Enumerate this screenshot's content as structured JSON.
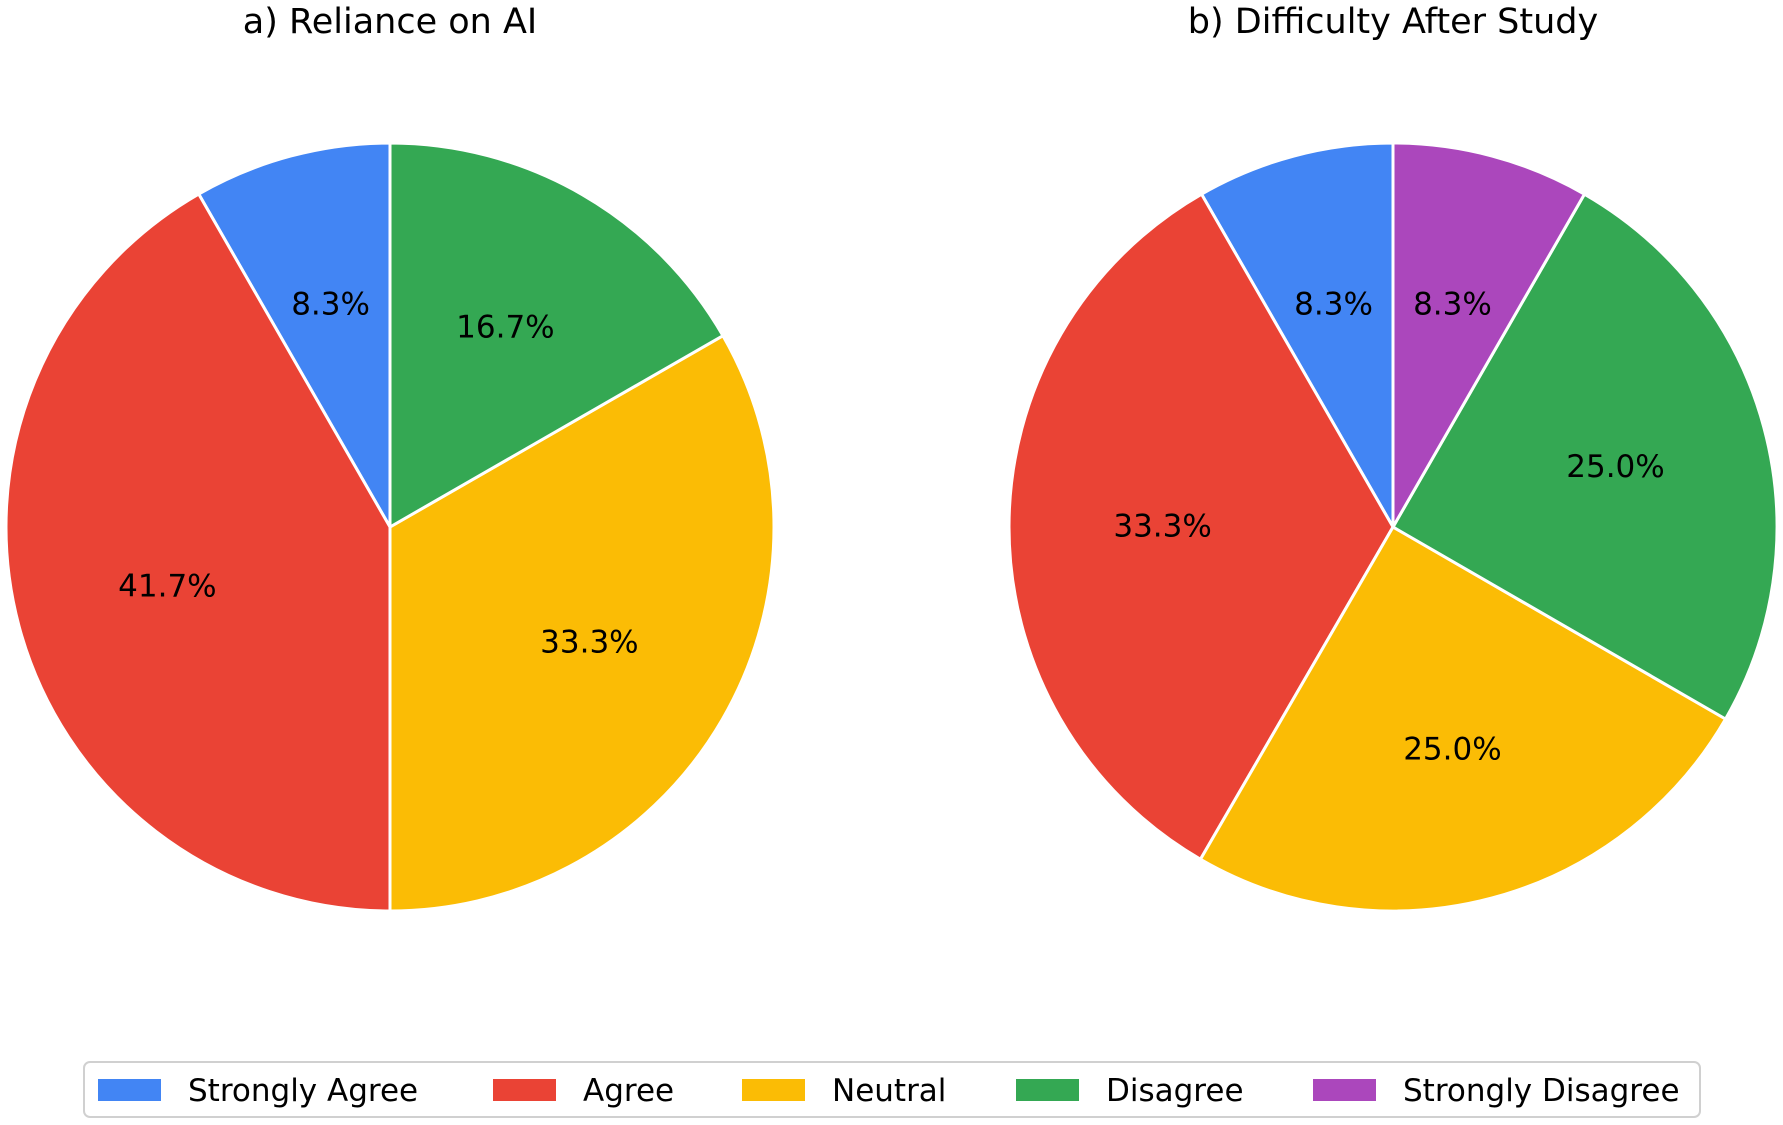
{
  "chart_data": [
    {
      "type": "pie",
      "title": "a) Reliance on AI",
      "start_angle_deg": 90,
      "direction": "counterclockwise",
      "categories": [
        "Strongly Agree",
        "Agree",
        "Neutral",
        "Disagree"
      ],
      "values": [
        8.3,
        41.7,
        33.3,
        16.7
      ],
      "labels": [
        "8.3%",
        "41.7%",
        "33.3%",
        "16.7%"
      ],
      "colors": [
        "#4285F4",
        "#EA4335",
        "#FBBC05",
        "#34A853"
      ]
    },
    {
      "type": "pie",
      "title": "b) Difficulty After Study",
      "start_angle_deg": 90,
      "direction": "counterclockwise",
      "categories": [
        "Strongly Agree",
        "Agree",
        "Neutral",
        "Disagree",
        "Strongly Disagree"
      ],
      "values": [
        8.3,
        33.3,
        25.0,
        25.0,
        8.3
      ],
      "labels": [
        "8.3%",
        "33.3%",
        "25.0%",
        "25.0%",
        "8.3%"
      ],
      "colors": [
        "#4285F4",
        "#EA4335",
        "#FBBC05",
        "#34A853",
        "#AB47BC"
      ]
    }
  ],
  "legend": {
    "placement": "bottom-center",
    "items": [
      {
        "label": "Strongly Agree",
        "color": "#4285F4"
      },
      {
        "label": "Agree",
        "color": "#EA4335"
      },
      {
        "label": "Neutral",
        "color": "#FBBC05"
      },
      {
        "label": "Disagree",
        "color": "#34A853"
      },
      {
        "label": "Strongly Disagree",
        "color": "#AB47BC"
      }
    ]
  }
}
